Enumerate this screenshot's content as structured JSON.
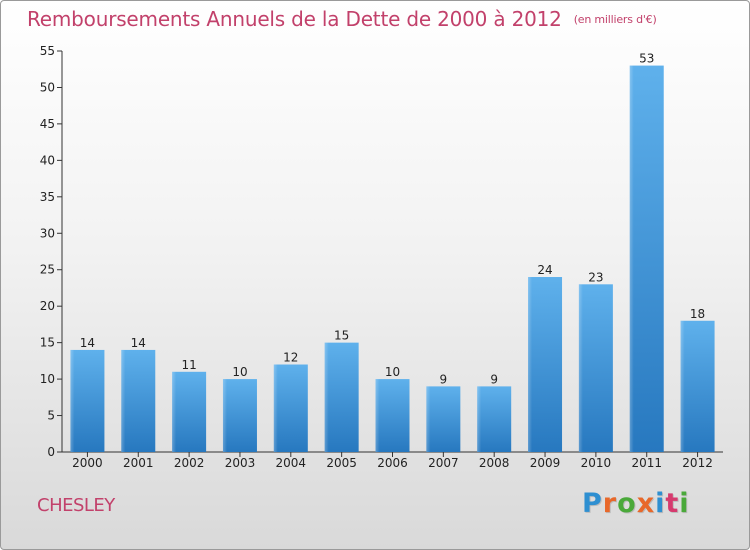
{
  "title": "Remboursements Annuels de la Dette de 2000 à 2012",
  "unit": "(en milliers d'€)",
  "commune": "CHESLEY",
  "brand": {
    "letters": [
      "P",
      "r",
      "o",
      "x",
      "i",
      "t",
      "i"
    ],
    "colors": [
      "#2e8fd1",
      "#e8682a",
      "#4aa93a",
      "#e8682a",
      "#2e8fd1",
      "#d63a6e",
      "#4aa93a"
    ]
  },
  "colors": {
    "accent": "#c2416b",
    "bar": "#3b94d6"
  },
  "chart_data": {
    "type": "bar",
    "categories": [
      "2000",
      "2001",
      "2002",
      "2003",
      "2004",
      "2005",
      "2006",
      "2007",
      "2008",
      "2009",
      "2010",
      "2011",
      "2012"
    ],
    "values": [
      14,
      14,
      11,
      10,
      12,
      15,
      10,
      9,
      9,
      24,
      23,
      53,
      18
    ],
    "data_labels": [
      "14",
      "14",
      "11",
      "10",
      "12",
      "15",
      "10",
      "9",
      "9",
      "24",
      "23",
      "53",
      "18"
    ],
    "ylim": [
      0,
      55
    ],
    "yticks": [
      "0",
      "5",
      "10",
      "15",
      "20",
      "25",
      "30",
      "35",
      "40",
      "45",
      "50",
      "55"
    ],
    "grid": false,
    "xlabel": "",
    "ylabel": ""
  }
}
